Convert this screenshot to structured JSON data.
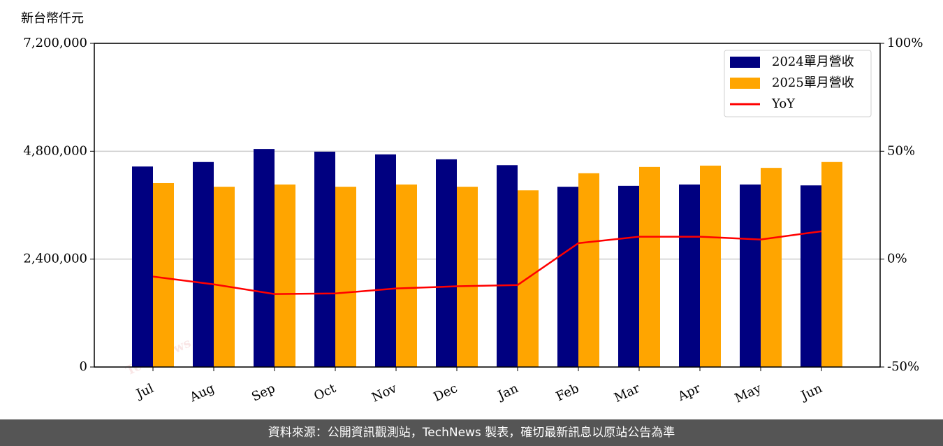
{
  "chart_data": {
    "type": "bar",
    "y_label": "新台幣仟元",
    "watermark": "TechNews",
    "categories": [
      "Jul",
      "Aug",
      "Sep",
      "Oct",
      "Nov",
      "Dec",
      "Jan",
      "Feb",
      "Mar",
      "Apr",
      "May",
      "Jun"
    ],
    "series": [
      {
        "name": "2024單月營收",
        "color": "#000080",
        "values": [
          4460000,
          4560000,
          4850000,
          4790000,
          4730000,
          4620000,
          4490000,
          4010000,
          4030000,
          4060000,
          4060000,
          4040000
        ]
      },
      {
        "name": "2025單月營收",
        "color": "#ffa500",
        "values": [
          4090000,
          4010000,
          4060000,
          4010000,
          4060000,
          4010000,
          3930000,
          4310000,
          4450000,
          4480000,
          4430000,
          4560000
        ]
      },
      {
        "name": "YoY",
        "color": "#ff0000",
        "type": "line",
        "axis": "y2",
        "values": [
          -8.1,
          -11.7,
          -16.2,
          -15.9,
          -13.6,
          -12.6,
          -12.0,
          7.4,
          10.4,
          10.4,
          9.1,
          12.9
        ]
      }
    ],
    "ylim": [
      0,
      7200000
    ],
    "yticks": [
      0,
      {
        "value": 2400000,
        "label": "2,400,000"
      },
      {
        "value": 4800000,
        "label": "4,800,000"
      },
      {
        "value": 7200000,
        "label": "7,200,000"
      }
    ],
    "y2lim": [
      -50,
      100
    ],
    "y2ticks": [
      {
        "value": -50,
        "label": "-50%"
      },
      {
        "value": 0,
        "label": "0%"
      },
      {
        "value": 50,
        "label": "50%"
      },
      {
        "value": 100,
        "label": "100%"
      }
    ],
    "grid": true,
    "legend": "upper right"
  },
  "footer": "資料來源：公開資訊觀測站，TechNews 製表，確切最新訊息以原站公告為準"
}
